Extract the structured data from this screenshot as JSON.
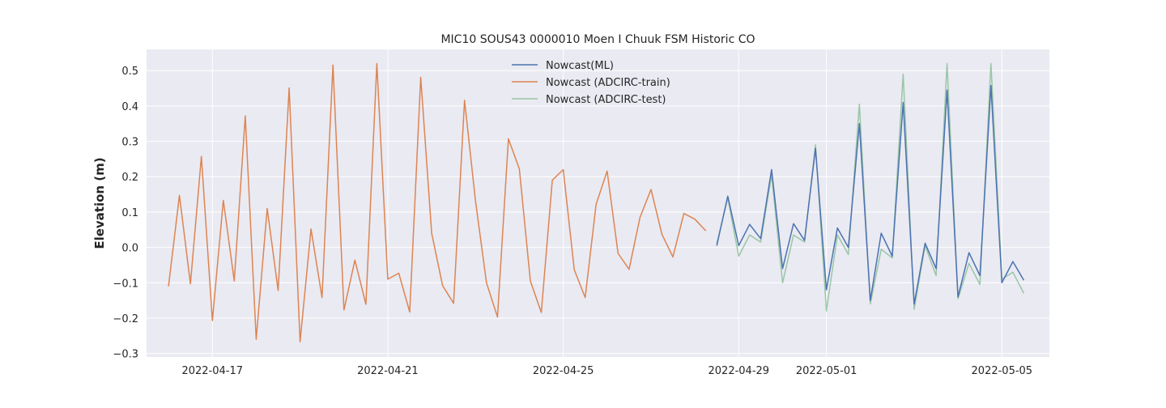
{
  "chart_data": {
    "type": "line",
    "title": "MIC10 SOUS43 0000010 Moen I Chuuk FSM Historic CO",
    "xlabel": "",
    "ylabel": "Elevation (m)",
    "ylim": [
      -0.31,
      0.56
    ],
    "yticks": [
      -0.3,
      -0.2,
      -0.1,
      0.0,
      0.1,
      0.2,
      0.3,
      0.4,
      0.5
    ],
    "ytick_labels": [
      "−0.3",
      "−0.2",
      "−0.1",
      "0.0",
      "0.1",
      "0.2",
      "0.3",
      "0.4",
      "0.5"
    ],
    "xlim": [
      "2022-04-15T12:00",
      "2022-05-06T02:00"
    ],
    "xticks": [
      "2022-04-17",
      "2022-04-21",
      "2022-04-25",
      "2022-04-29",
      "2022-05-01",
      "2022-05-05"
    ],
    "grid": true,
    "legend_position": "upper-center",
    "background_color": "#eaeaf2",
    "series": [
      {
        "name": "Nowcast(ML)",
        "color": "#4c72b0",
        "x": [
          "2022-04-28T12:00",
          "2022-04-28T18:00",
          "2022-04-29T00:00",
          "2022-04-29T06:00",
          "2022-04-29T12:00",
          "2022-04-29T18:00",
          "2022-04-30T00:00",
          "2022-04-30T06:00",
          "2022-04-30T12:00",
          "2022-04-30T18:00",
          "2022-05-01T00:00",
          "2022-05-01T06:00",
          "2022-05-01T12:00",
          "2022-05-01T18:00",
          "2022-05-02T00:00",
          "2022-05-02T06:00",
          "2022-05-02T12:00",
          "2022-05-02T18:00",
          "2022-05-03T00:00",
          "2022-05-03T06:00",
          "2022-05-03T12:00",
          "2022-05-03T18:00",
          "2022-05-04T00:00",
          "2022-05-04T06:00",
          "2022-05-04T12:00",
          "2022-05-04T18:00",
          "2022-05-05T00:00",
          "2022-05-05T06:00",
          "2022-05-05T12:00"
        ],
        "values": [
          0.005,
          0.145,
          0.005,
          0.065,
          0.025,
          0.22,
          -0.06,
          0.067,
          0.02,
          0.28,
          -0.12,
          0.055,
          0.0,
          0.35,
          -0.15,
          0.04,
          -0.025,
          0.41,
          -0.16,
          0.012,
          -0.06,
          0.445,
          -0.14,
          -0.015,
          -0.08,
          0.458,
          -0.1,
          -0.04,
          -0.093
        ]
      },
      {
        "name": "Nowcast (ADCIRC-train)",
        "color": "#dd8452",
        "x": [
          "2022-04-16T00:00",
          "2022-04-16T06:00",
          "2022-04-16T12:00",
          "2022-04-16T18:00",
          "2022-04-17T00:00",
          "2022-04-17T06:00",
          "2022-04-17T12:00",
          "2022-04-17T18:00",
          "2022-04-18T00:00",
          "2022-04-18T06:00",
          "2022-04-18T12:00",
          "2022-04-18T18:00",
          "2022-04-19T00:00",
          "2022-04-19T06:00",
          "2022-04-19T12:00",
          "2022-04-19T18:00",
          "2022-04-20T00:00",
          "2022-04-20T06:00",
          "2022-04-20T12:00",
          "2022-04-20T18:00",
          "2022-04-21T00:00",
          "2022-04-21T06:00",
          "2022-04-21T12:00",
          "2022-04-21T18:00",
          "2022-04-22T00:00",
          "2022-04-22T06:00",
          "2022-04-22T12:00",
          "2022-04-22T18:00",
          "2022-04-23T00:00",
          "2022-04-23T06:00",
          "2022-04-23T12:00",
          "2022-04-23T18:00",
          "2022-04-24T00:00",
          "2022-04-24T06:00",
          "2022-04-24T12:00",
          "2022-04-24T18:00",
          "2022-04-25T00:00",
          "2022-04-25T06:00",
          "2022-04-25T12:00",
          "2022-04-25T18:00",
          "2022-04-26T00:00",
          "2022-04-26T06:00",
          "2022-04-26T12:00",
          "2022-04-26T18:00",
          "2022-04-27T00:00",
          "2022-04-27T06:00",
          "2022-04-27T12:00",
          "2022-04-27T18:00",
          "2022-04-28T00:00",
          "2022-04-28T06:00"
        ],
        "values": [
          -0.11,
          0.147,
          -0.103,
          0.257,
          -0.207,
          0.133,
          -0.095,
          0.372,
          -0.26,
          0.11,
          -0.122,
          0.451,
          -0.267,
          0.052,
          -0.142,
          0.516,
          -0.177,
          -0.036,
          -0.161,
          0.52,
          -0.09,
          -0.073,
          -0.183,
          0.481,
          0.04,
          -0.108,
          -0.158,
          0.416,
          0.13,
          -0.1,
          -0.197,
          0.307,
          0.222,
          -0.095,
          -0.184,
          0.19,
          0.22,
          -0.063,
          -0.142,
          0.122,
          0.216,
          -0.017,
          -0.062,
          0.085,
          0.164,
          0.037,
          -0.027,
          0.096,
          0.08,
          0.047
        ]
      },
      {
        "name": "Nowcast (ADCIRC-test)",
        "color": "#55a868",
        "x": [
          "2022-04-28T12:00",
          "2022-04-28T18:00",
          "2022-04-29T00:00",
          "2022-04-29T06:00",
          "2022-04-29T12:00",
          "2022-04-29T18:00",
          "2022-04-30T00:00",
          "2022-04-30T06:00",
          "2022-04-30T12:00",
          "2022-04-30T18:00",
          "2022-05-01T00:00",
          "2022-05-01T06:00",
          "2022-05-01T12:00",
          "2022-05-01T18:00",
          "2022-05-02T00:00",
          "2022-05-02T06:00",
          "2022-05-02T12:00",
          "2022-05-02T18:00",
          "2022-05-03T00:00",
          "2022-05-03T06:00",
          "2022-05-03T12:00",
          "2022-05-03T18:00",
          "2022-05-04T00:00",
          "2022-05-04T06:00",
          "2022-05-04T12:00",
          "2022-05-04T18:00",
          "2022-05-05T00:00",
          "2022-05-05T06:00",
          "2022-05-05T12:00"
        ],
        "values": [
          0.01,
          0.14,
          -0.025,
          0.035,
          0.015,
          0.205,
          -0.1,
          0.035,
          0.015,
          0.29,
          -0.18,
          0.035,
          -0.02,
          0.405,
          -0.16,
          -0.005,
          -0.03,
          0.49,
          -0.175,
          0.005,
          -0.08,
          0.52,
          -0.145,
          -0.045,
          -0.105,
          0.52,
          -0.09,
          -0.07,
          -0.13
        ]
      }
    ]
  }
}
